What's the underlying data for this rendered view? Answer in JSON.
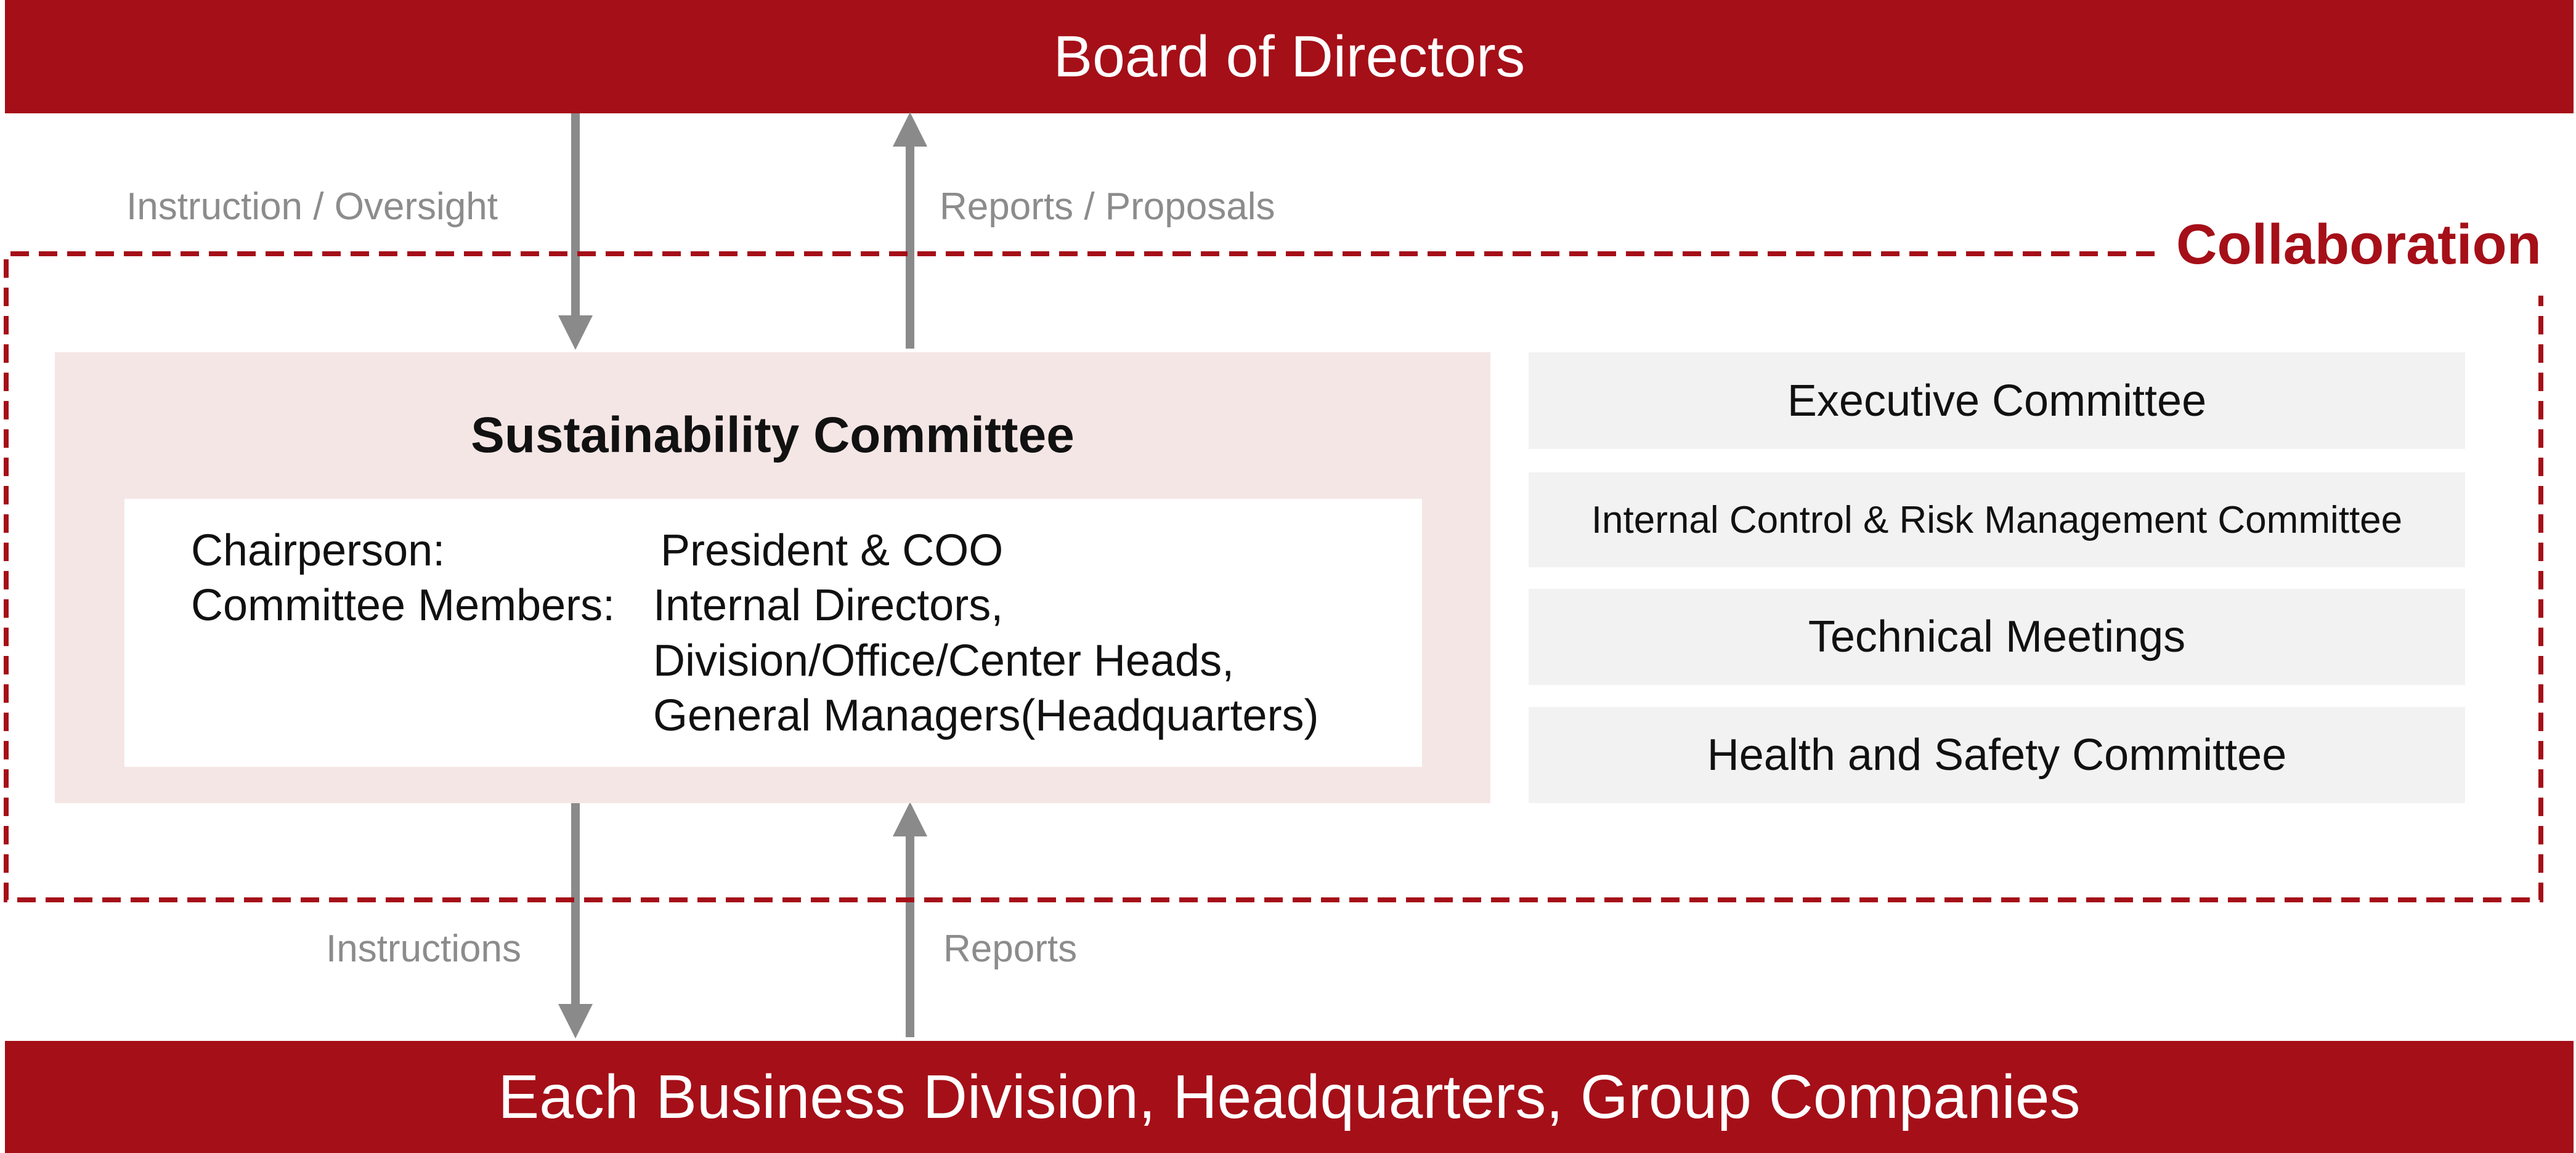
{
  "board": {
    "title": "Board of Directors"
  },
  "bottom": {
    "title": "Each Business Division, Headquarters, Group Companies"
  },
  "arrows": {
    "instruction_oversight": "Instruction /  Oversight",
    "reports_proposals": "Reports / Proposals",
    "instructions": "Instructions",
    "reports": "Reports"
  },
  "collaboration": {
    "label": "Collaboration"
  },
  "sustainability": {
    "title": "Sustainability Committee",
    "chair_label": "Chairperson:",
    "chair_value": "President & COO",
    "members_label": "Committee Members:",
    "members_lines": [
      "Internal Directors,",
      "Division/Office/Center Heads,",
      "General Managers(Headquarters)"
    ]
  },
  "committees": [
    "Executive Committee",
    "Internal Control & Risk Management Committee",
    "Technical Meetings",
    "Health and Safety Committee"
  ],
  "colors": {
    "brand_red": "#a50f18",
    "arrow_gray": "#8a8a8a",
    "committee_bg": "#f5e6e6",
    "box_gray": "#f2f2f2"
  }
}
